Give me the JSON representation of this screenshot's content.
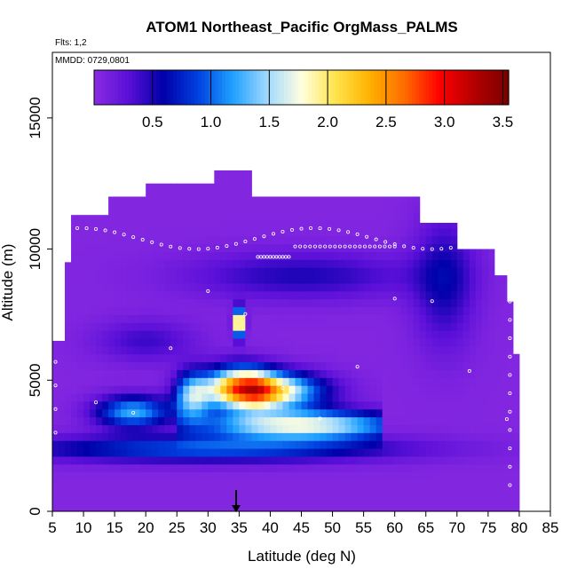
{
  "chart_data": {
    "type": "heatmap",
    "title": "ATOM1 Northeast_Pacific OrgMass_PALMS",
    "flights_label": "Flts: 1,2",
    "dates_label": "MMDD: 0729,0801",
    "xlabel": "Latitude (deg N)",
    "ylabel": "Altitude (m)",
    "xlim": [
      5,
      85
    ],
    "ylim": [
      0,
      17500
    ],
    "x_ticks": [
      "5",
      "10",
      "15",
      "20",
      "25",
      "30",
      "35",
      "40",
      "45",
      "50",
      "55",
      "60",
      "65",
      "70",
      "75",
      "80",
      "85"
    ],
    "y_ticks": [
      "0",
      "5000",
      "10000",
      "15000"
    ],
    "colorbar": {
      "min": 0,
      "max": 3.55,
      "ticks": [
        "0.5",
        "1.0",
        "1.5",
        "2.0",
        "2.5",
        "3.0",
        "3.5"
      ],
      "colors": [
        "#8a2be2",
        "#5a0fd8",
        "#0000a8",
        "#0040e0",
        "#1ea0ff",
        "#9fd8ff",
        "#ffffe0",
        "#ffe44a",
        "#ffb000",
        "#ff6a00",
        "#ff0000",
        "#b40000",
        "#7a0000"
      ]
    },
    "latitude_profile_x": [
      5,
      10,
      15,
      20,
      25,
      30,
      35,
      40,
      45,
      50,
      55,
      60,
      65,
      70,
      75,
      80
    ],
    "grid": false,
    "legend": "colorbar top",
    "arrow_latitude": 35,
    "arrow_altitude": 0
  }
}
